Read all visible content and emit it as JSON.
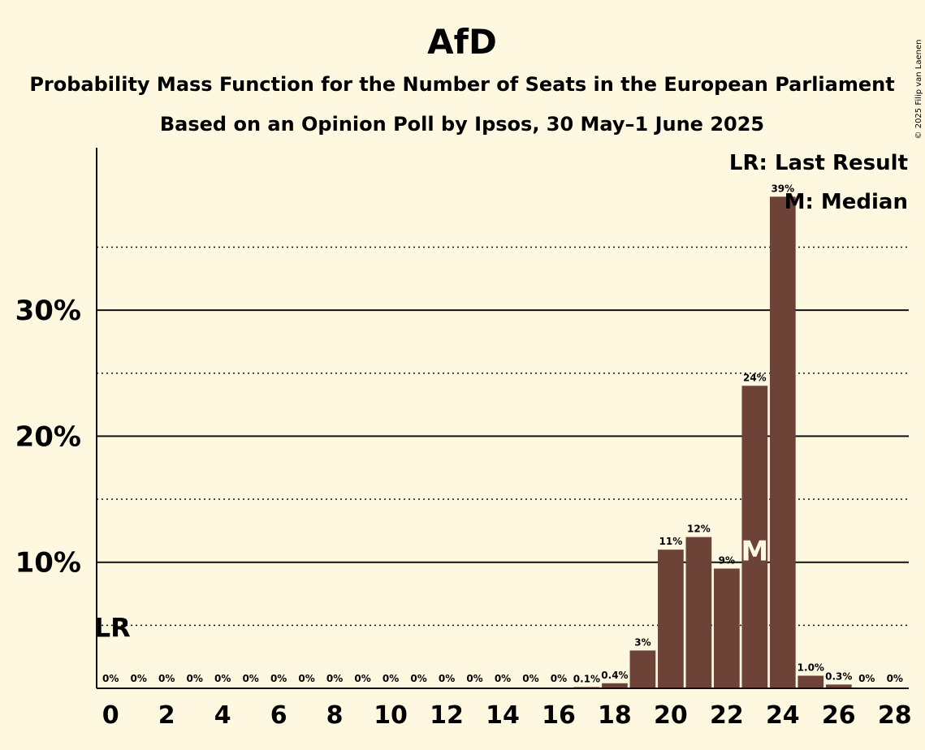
{
  "chart_data": {
    "type": "bar",
    "title": "AfD",
    "subtitle": "Probability Mass Function for the Number of Seats in the European Parliament",
    "subtitle2": "Based on an Opinion Poll by Ipsos, 30 May–1 June 2025",
    "copyright": "© 2025 Filip van Laenen",
    "categories": [
      0,
      1,
      2,
      3,
      4,
      5,
      6,
      7,
      8,
      9,
      10,
      11,
      12,
      13,
      14,
      15,
      16,
      17,
      18,
      19,
      20,
      21,
      22,
      23,
      24,
      25,
      26,
      27,
      28
    ],
    "values": [
      0,
      0,
      0,
      0,
      0,
      0,
      0,
      0,
      0,
      0,
      0,
      0,
      0,
      0,
      0,
      0,
      0,
      0.1,
      0.4,
      3,
      11,
      12,
      9.5,
      24,
      39,
      1.0,
      0.3,
      0,
      0
    ],
    "data_labels": [
      "0%",
      "0%",
      "0%",
      "0%",
      "0%",
      "0%",
      "0%",
      "0%",
      "0%",
      "0%",
      "0%",
      "0%",
      "0%",
      "0%",
      "0%",
      "0%",
      "0%",
      "0.1%",
      "0.4%",
      "3%",
      "11%",
      "12%",
      "9%",
      "24%",
      "39%",
      "1.0%",
      "0.3%",
      "0%",
      "0%"
    ],
    "x_tick_labels": [
      "0",
      "2",
      "4",
      "6",
      "8",
      "10",
      "12",
      "14",
      "16",
      "18",
      "20",
      "22",
      "24",
      "26",
      "28"
    ],
    "y_tick_labels": [
      "10%",
      "20%",
      "30%"
    ],
    "ylim": [
      0,
      42
    ],
    "median_seat": 23,
    "median_marker": "M",
    "last_result_seat": 0,
    "last_result_marker": "LR",
    "legend": [
      "LR: Last Result",
      "M: Median"
    ],
    "legend_position": "top-right",
    "bar_color": "#6d4338",
    "background_color": "#fff8e1"
  }
}
